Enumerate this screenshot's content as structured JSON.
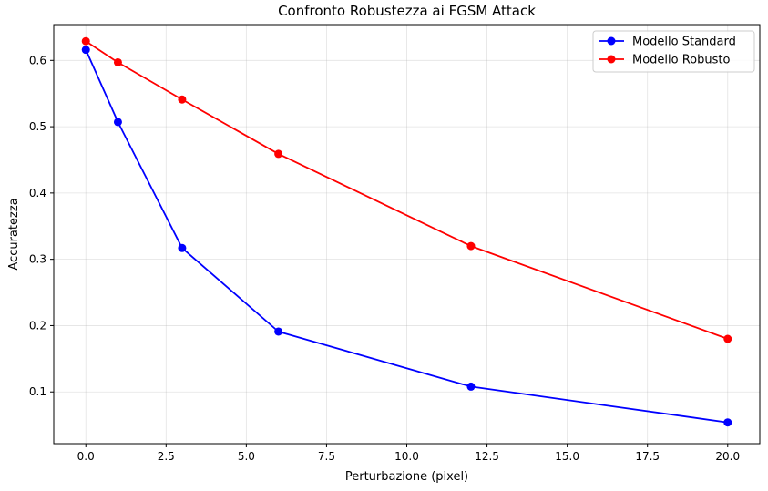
{
  "chart_data": {
    "type": "line",
    "title": "Confronto Robustezza ai FGSM Attack",
    "xlabel": "Perturbazione (pixel)",
    "ylabel": "Accuratezza",
    "xlim": [
      -1.0,
      21.0
    ],
    "ylim": [
      0.022,
      0.654
    ],
    "xticks": [
      0.0,
      2.5,
      5.0,
      7.5,
      10.0,
      12.5,
      15.0,
      17.5,
      20.0
    ],
    "xtick_labels": [
      "0.0",
      "2.5",
      "5.0",
      "7.5",
      "10.0",
      "12.5",
      "15.0",
      "17.5",
      "20.0"
    ],
    "yticks": [
      0.1,
      0.2,
      0.3,
      0.4,
      0.5,
      0.6
    ],
    "ytick_labels": [
      "0.1",
      "0.2",
      "0.3",
      "0.4",
      "0.5",
      "0.6"
    ],
    "grid": true,
    "legend_position": "top-right",
    "x": [
      0,
      1,
      3,
      6,
      12,
      20
    ],
    "series": [
      {
        "name": "Modello Standard",
        "color": "#0000ff",
        "values": [
          0.616,
          0.507,
          0.317,
          0.191,
          0.108,
          0.054
        ]
      },
      {
        "name": "Modello Robusto",
        "color": "#ff0000",
        "values": [
          0.629,
          0.597,
          0.541,
          0.459,
          0.32,
          0.18
        ]
      }
    ]
  }
}
